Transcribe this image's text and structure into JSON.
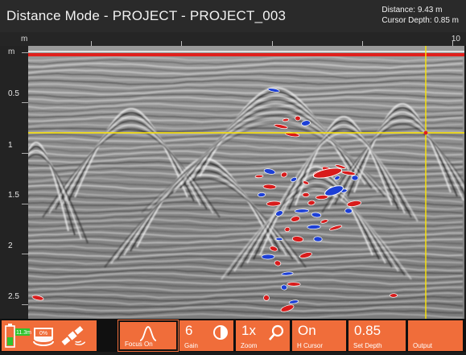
{
  "title": "Distance Mode - PROJECT - PROJECT_003",
  "readout": {
    "distance": "Distance: 9.43 m",
    "cursor_depth": "Cursor Depth: 0.85 m"
  },
  "distance_scale": {
    "unit": "m",
    "end_label": "10"
  },
  "depth_scale": {
    "unit": "m",
    "labels": [
      "0.5",
      "1",
      "1.5",
      "2",
      "2.5"
    ]
  },
  "status": {
    "battery_label": "11.3m",
    "storage_label": "0%",
    "icons": [
      "battery-icon",
      "storage-icon",
      "gps-satellite-icon"
    ]
  },
  "toolbar": [
    {
      "id": "focus",
      "value": "",
      "caption": "Focus On",
      "icon": "hyperbola-icon",
      "selected": true
    },
    {
      "id": "gain",
      "value": "6",
      "caption": "Gain",
      "icon": "contrast-icon",
      "selected": false
    },
    {
      "id": "zoom",
      "value": "1x",
      "caption": "Zoom",
      "icon": "magnifier-icon",
      "selected": false
    },
    {
      "id": "hcursor",
      "value": "On",
      "caption": "H Cursor",
      "icon": "",
      "selected": false
    },
    {
      "id": "setdepth",
      "value": "0.85",
      "caption": "Set Depth",
      "icon": "",
      "selected": false
    },
    {
      "id": "output",
      "value": "",
      "caption": "Output",
      "icon": "",
      "selected": false
    }
  ],
  "colors": {
    "accent": "#f06d3a",
    "cursor": "#ffe600",
    "surface_line": "#e0201c",
    "positive": "#d81b1b",
    "negative": "#1c3fd6"
  }
}
